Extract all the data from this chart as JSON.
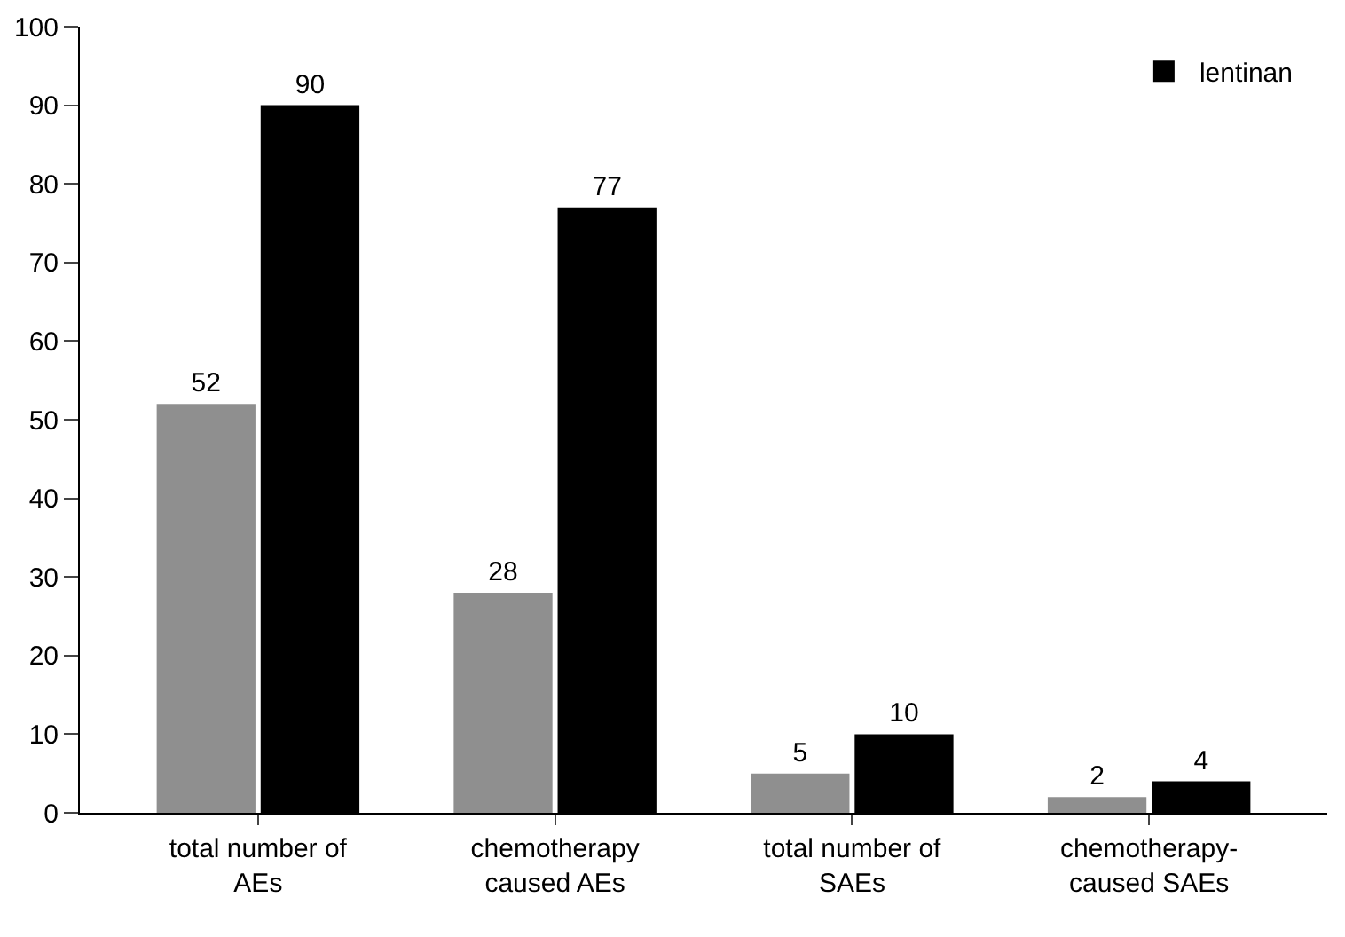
{
  "chart_data": {
    "type": "bar",
    "categories": [
      "total number of\nAEs",
      "chemotherapy\ncaused AEs",
      "total number of\nSAEs",
      "chemotherapy-\ncaused SAEs"
    ],
    "series": [
      {
        "color": "#8f8f8f",
        "values": [
          52,
          28,
          5,
          2
        ]
      },
      {
        "name": "lentinan",
        "color": "#000000",
        "values": [
          90,
          77,
          10,
          4
        ]
      }
    ],
    "ylim": [
      0,
      100
    ],
    "yticks": [
      0,
      10,
      20,
      30,
      40,
      50,
      60,
      70,
      80,
      90,
      100
    ],
    "grid": false,
    "legend": "top right",
    "data_labels": true
  }
}
